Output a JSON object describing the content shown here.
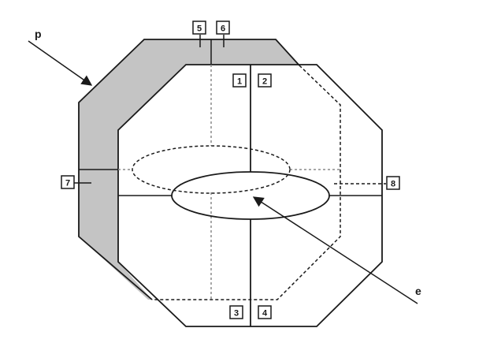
{
  "colors": {
    "shaded_region": "#c4c4c4",
    "line": "#1a1a1a",
    "hidden_grey": "#8a8a8a"
  },
  "labels": {
    "box_1": "1",
    "box_2": "2",
    "box_3": "3",
    "box_4": "4",
    "box_5": "5",
    "box_6": "6",
    "box_7": "7",
    "box_8": "8",
    "letter_p": "p",
    "letter_e": "e"
  }
}
